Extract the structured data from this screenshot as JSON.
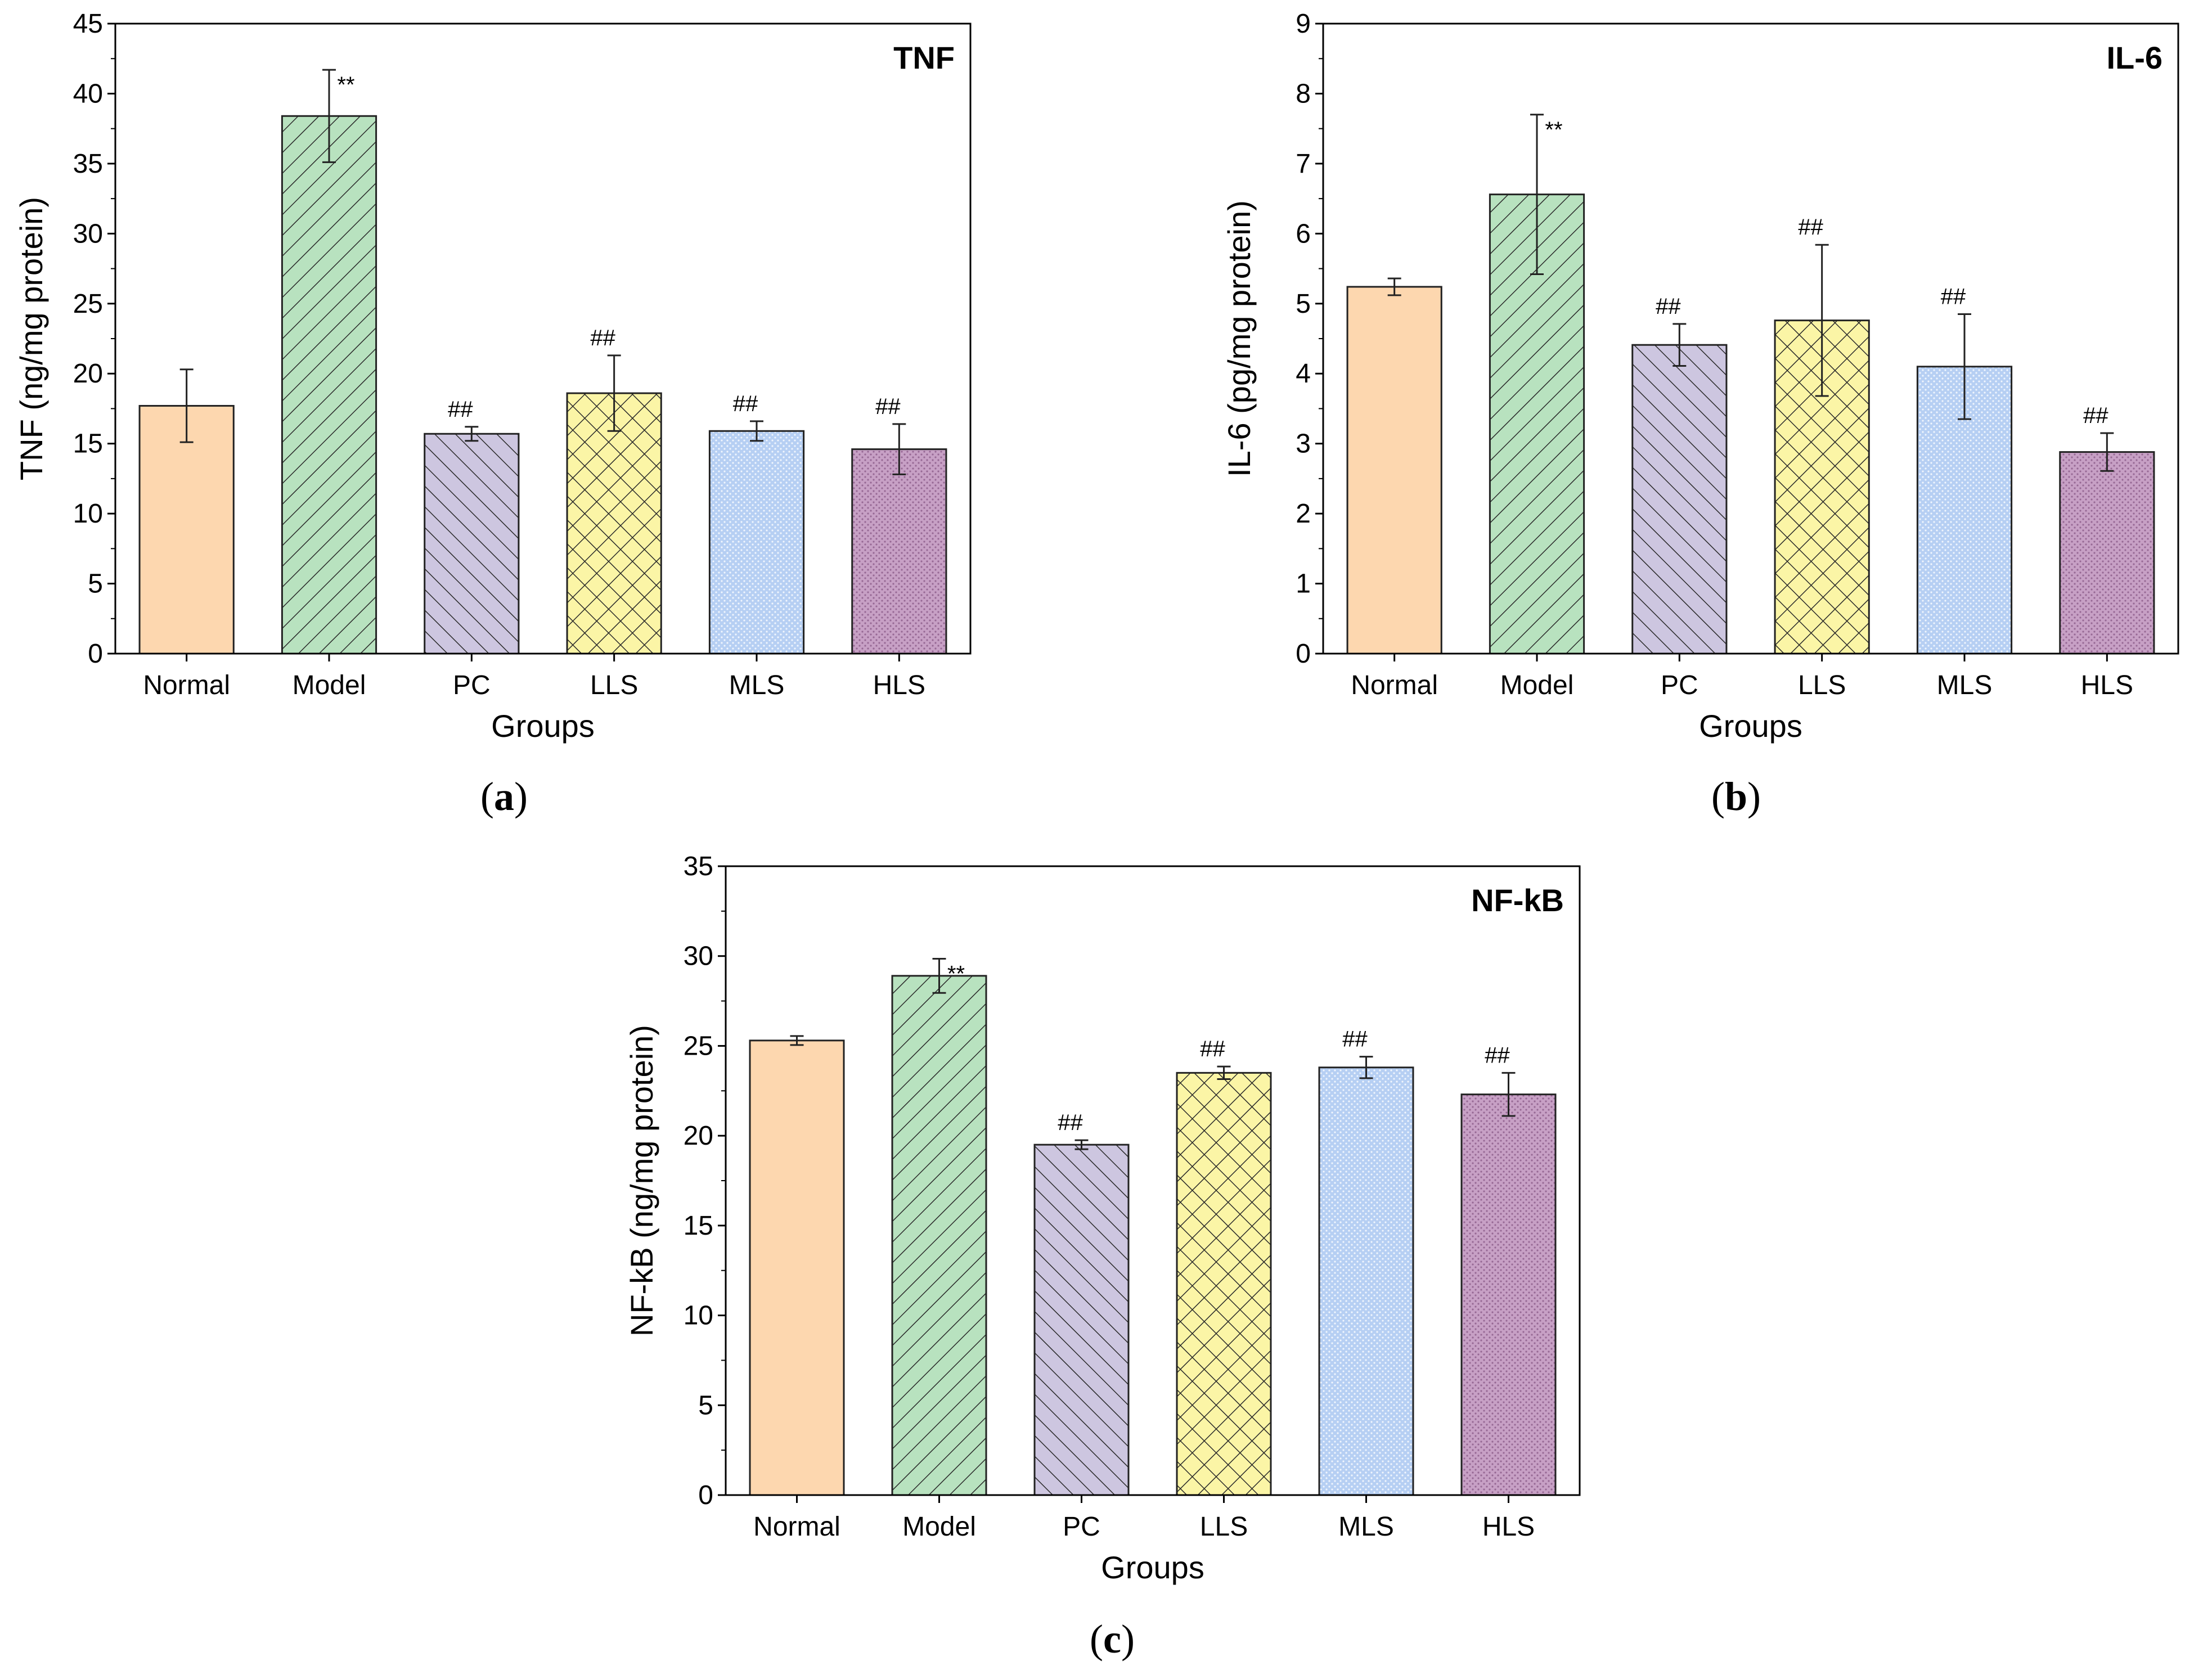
{
  "styles": {
    "Normal": {
      "fill": "#fdd7af",
      "pattern": "solid"
    },
    "Model": {
      "fill": "#b8e2bf",
      "pattern": "diag-right"
    },
    "PC": {
      "fill": "#cdc6e0",
      "pattern": "diag-left"
    },
    "LLS": {
      "fill": "#fbf5a6",
      "pattern": "crosshatch"
    },
    "MLS": {
      "fill": "#b6cff3",
      "pattern": "dots"
    },
    "HLS": {
      "fill": "#c7a0c5",
      "pattern": "dots-dark"
    }
  },
  "chart_data": [
    {
      "id": "a",
      "type": "bar",
      "panel_label": "a",
      "title": "TNF",
      "xlabel": "Groups",
      "ylabel": "TNF (ng/mg protein)",
      "ylim": [
        0,
        45
      ],
      "yticks": [
        0,
        5,
        10,
        15,
        20,
        25,
        30,
        35,
        40,
        45
      ],
      "categories": [
        "Normal",
        "Model",
        "PC",
        "LLS",
        "MLS",
        "HLS"
      ],
      "values": [
        17.7,
        38.4,
        15.7,
        18.6,
        15.9,
        14.6
      ],
      "errors": [
        2.6,
        3.3,
        0.5,
        2.7,
        0.7,
        1.8
      ],
      "annotations": [
        "",
        "**",
        "##",
        "##",
        "##",
        "##"
      ]
    },
    {
      "id": "b",
      "type": "bar",
      "panel_label": "b",
      "title": "IL-6",
      "xlabel": "Groups",
      "ylabel": "IL-6 (pg/mg protein)",
      "ylim": [
        0,
        9
      ],
      "yticks": [
        0,
        1,
        2,
        3,
        4,
        5,
        6,
        7,
        8,
        9
      ],
      "categories": [
        "Normal",
        "Model",
        "PC",
        "LLS",
        "MLS",
        "HLS"
      ],
      "values": [
        5.24,
        6.56,
        4.41,
        4.76,
        4.1,
        2.88
      ],
      "errors": [
        0.12,
        1.14,
        0.3,
        1.08,
        0.75,
        0.27
      ],
      "annotations": [
        "",
        "**",
        "##",
        "##",
        "##",
        "##"
      ]
    },
    {
      "id": "c",
      "type": "bar",
      "panel_label": "c",
      "title": "NF-kB",
      "xlabel": "Groups",
      "ylabel": "NF-kB (ng/mg protein)",
      "ylim": [
        0,
        35
      ],
      "yticks": [
        0,
        5,
        10,
        15,
        20,
        25,
        30,
        35
      ],
      "categories": [
        "Normal",
        "Model",
        "PC",
        "LLS",
        "MLS",
        "HLS"
      ],
      "values": [
        25.3,
        28.9,
        19.5,
        23.5,
        23.8,
        22.3
      ],
      "errors": [
        0.25,
        0.95,
        0.25,
        0.35,
        0.6,
        1.2
      ],
      "annotations": [
        "",
        "**",
        "##",
        "##",
        "##",
        "##"
      ]
    }
  ]
}
